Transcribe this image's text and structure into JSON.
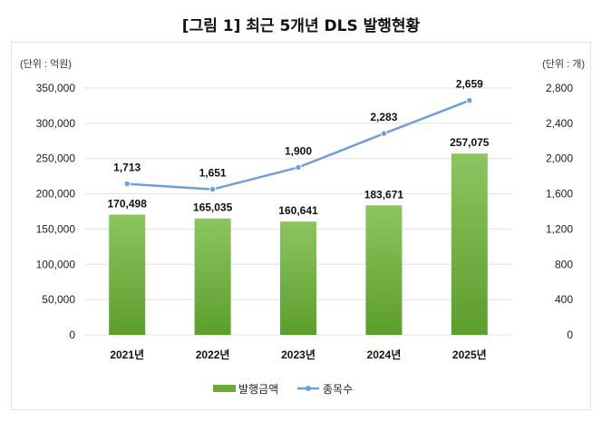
{
  "title": "[그림 1] 최근 5개년 DLS 발행현황",
  "chart_data": {
    "type": "bar+line",
    "title": "[그림 1] 최근 5개년 DLS 발행현황",
    "categories": [
      "2021년",
      "2022년",
      "2023년",
      "2024년",
      "2025년"
    ],
    "y_left": {
      "unit_label": "(단위 : 억원)",
      "range": [
        0,
        350000
      ],
      "ticks": [
        0,
        50000,
        100000,
        150000,
        200000,
        250000,
        300000,
        350000
      ],
      "tick_labels": [
        "0",
        "50,000",
        "100,000",
        "150,000",
        "200,000",
        "250,000",
        "300,000",
        "350,000"
      ]
    },
    "y_right": {
      "unit_label": "(단위 : 개)",
      "range": [
        0,
        2800
      ],
      "ticks": [
        0,
        400,
        800,
        1200,
        1600,
        2000,
        2400,
        2800
      ],
      "tick_labels": [
        "0",
        "400",
        "800",
        "1,200",
        "1,600",
        "2,000",
        "2,400",
        "2,800"
      ]
    },
    "grid": true,
    "legend": "bottom",
    "series": [
      {
        "name": "발행금액",
        "type": "bar",
        "axis": "left",
        "color": "#6aab3a",
        "values": [
          170498,
          165035,
          160641,
          183671,
          257075
        ],
        "labels": [
          "170,498",
          "165,035",
          "160,641",
          "183,671",
          "257,075"
        ]
      },
      {
        "name": "종목수",
        "type": "line",
        "axis": "right",
        "color": "#6f9fd8",
        "values": [
          1713,
          1651,
          1900,
          2283,
          2659
        ],
        "labels": [
          "1,713",
          "1,651",
          "1,900",
          "2,283",
          "2,659"
        ]
      }
    ]
  }
}
